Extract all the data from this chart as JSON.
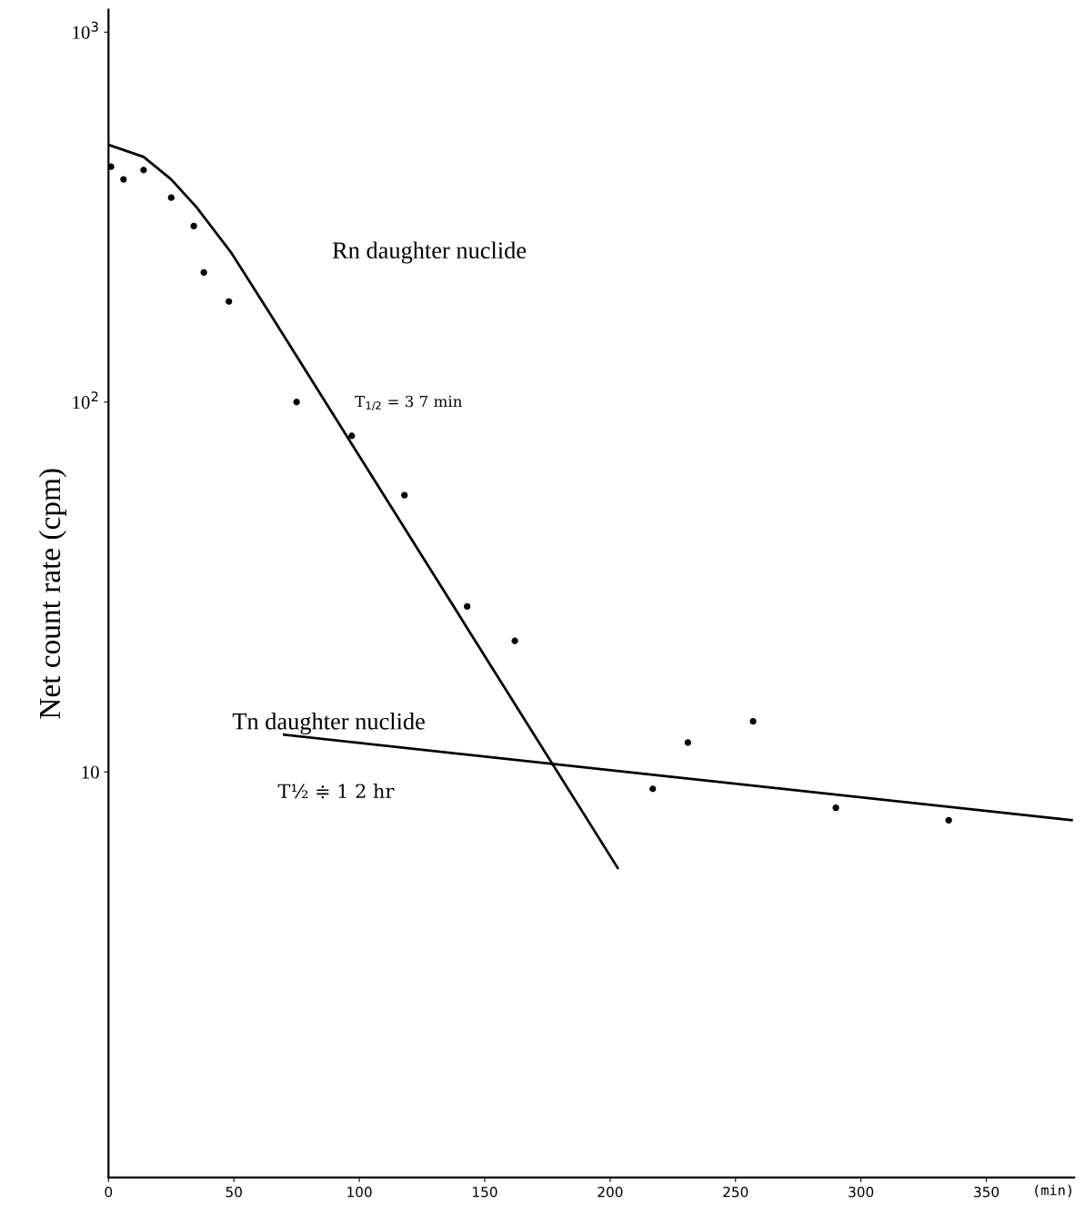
{
  "chart_data": {
    "type": "scatter",
    "ylabel": "Net count rate (cpm)",
    "xlabel": "(min)",
    "log": "y",
    "xlim": [
      0,
      385
    ],
    "ylim": [
      0.8,
      1150
    ],
    "xticks": [
      0,
      50,
      100,
      150,
      200,
      250,
      300,
      350
    ],
    "yticks": [
      {
        "value": 1000,
        "label": "10$^{3}$"
      },
      {
        "value": 100,
        "label": "10$^{2}$"
      },
      10
    ],
    "grid": false,
    "series": [
      {
        "color": "#000000",
        "marker": "circle",
        "x": [
          1,
          6,
          14,
          25,
          34,
          38,
          48,
          75,
          97,
          118,
          143,
          162,
          217,
          231,
          257,
          290,
          335
        ],
        "values": [
          433,
          400,
          424,
          357,
          299,
          224,
          187,
          100,
          81,
          56,
          28,
          22.6,
          9.0,
          12.0,
          13.7,
          8.0,
          7.4
        ]
      },
      {
        "type": "line",
        "color": "#000000",
        "line_style": "solid",
        "marker": "none",
        "x": [
          0,
          14,
          25,
          35,
          49,
          64,
          203
        ],
        "values": [
          496,
          460,
          400,
          337,
          253,
          175,
          5.5
        ]
      },
      {
        "type": "line",
        "color": "#000000",
        "line_style": "solid",
        "marker": "none",
        "x": [
          70,
          384
        ],
        "values": [
          12.6,
          7.4
        ]
      }
    ],
    "annotations": [
      "Rn daughter nuclide",
      "T$_{1/2}$ = 3 7 min",
      "Tn daughter nuclide",
      "T½ ≑ 1 2 hr"
    ]
  }
}
